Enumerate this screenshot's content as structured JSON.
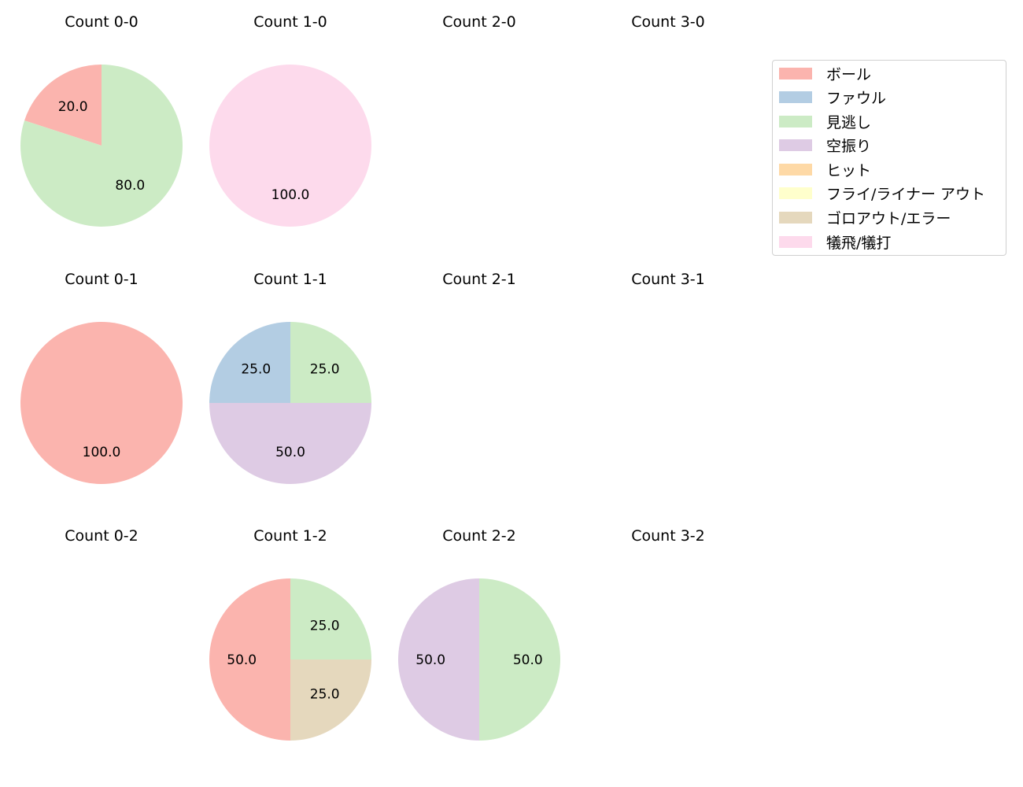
{
  "chart_data": {
    "type": "pie",
    "title": "",
    "legend": {
      "position": "upper right",
      "entries": [
        {
          "label": "ボール",
          "color": "#fbb4ae"
        },
        {
          "label": "ファウル",
          "color": "#b3cde3"
        },
        {
          "label": "見逃し",
          "color": "#ccebc5"
        },
        {
          "label": "空振り",
          "color": "#decbe4"
        },
        {
          "label": "ヒット",
          "color": "#fed9a6"
        },
        {
          "label": "フライ/ライナー アウト",
          "color": "#ffffcc"
        },
        {
          "label": "ゴロアウト/エラー",
          "color": "#e5d8bd"
        },
        {
          "label": "犠飛/犠打",
          "color": "#fddaec"
        }
      ]
    },
    "subplots": [
      {
        "title": "Count 0-0",
        "row": 0,
        "col": 0,
        "slices": [
          {
            "category": "ボール",
            "value": 20.0,
            "color": "#fbb4ae"
          },
          {
            "category": "見逃し",
            "value": 80.0,
            "color": "#ccebc5"
          }
        ]
      },
      {
        "title": "Count 1-0",
        "row": 0,
        "col": 1,
        "slices": [
          {
            "category": "犠飛/犠打",
            "value": 100.0,
            "color": "#fddaec"
          }
        ]
      },
      {
        "title": "Count 2-0",
        "row": 0,
        "col": 2,
        "slices": []
      },
      {
        "title": "Count 3-0",
        "row": 0,
        "col": 3,
        "slices": []
      },
      {
        "title": "Count 0-1",
        "row": 1,
        "col": 0,
        "slices": [
          {
            "category": "ボール",
            "value": 100.0,
            "color": "#fbb4ae"
          }
        ]
      },
      {
        "title": "Count 1-1",
        "row": 1,
        "col": 1,
        "slices": [
          {
            "category": "ファウル",
            "value": 25.0,
            "color": "#b3cde3"
          },
          {
            "category": "空振り",
            "value": 50.0,
            "color": "#decbe4"
          },
          {
            "category": "見逃し",
            "value": 25.0,
            "color": "#ccebc5"
          }
        ]
      },
      {
        "title": "Count 2-1",
        "row": 1,
        "col": 2,
        "slices": []
      },
      {
        "title": "Count 3-1",
        "row": 1,
        "col": 3,
        "slices": []
      },
      {
        "title": "Count 0-2",
        "row": 2,
        "col": 0,
        "slices": []
      },
      {
        "title": "Count 1-2",
        "row": 2,
        "col": 1,
        "slices": [
          {
            "category": "ボール",
            "value": 50.0,
            "color": "#fbb4ae"
          },
          {
            "category": "ゴロアウト/エラー",
            "value": 25.0,
            "color": "#e5d8bd"
          },
          {
            "category": "見逃し",
            "value": 25.0,
            "color": "#ccebc5"
          }
        ]
      },
      {
        "title": "Count 2-2",
        "row": 2,
        "col": 2,
        "slices": [
          {
            "category": "空振り",
            "value": 50.0,
            "color": "#decbe4"
          },
          {
            "category": "見逃し",
            "value": 50.0,
            "color": "#ccebc5"
          }
        ]
      },
      {
        "title": "Count 3-2",
        "row": 2,
        "col": 3,
        "slices": []
      }
    ]
  }
}
